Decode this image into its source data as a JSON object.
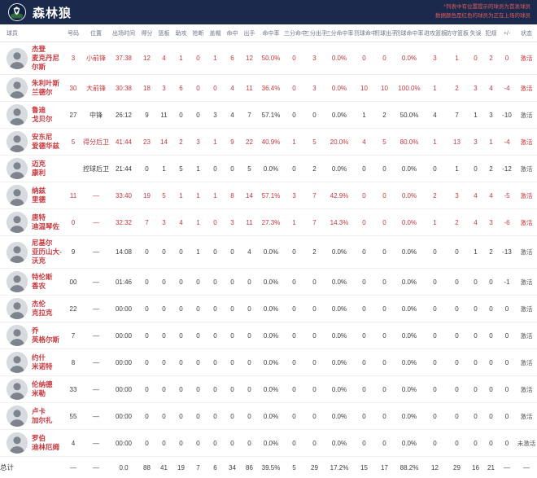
{
  "team": {
    "name": "森林狼"
  },
  "note": {
    "line1": "*列表中有位置提示的球员为首发球员",
    "line2": "数据颜色是红色的球员为正在上场的球员"
  },
  "colors": {
    "header_navy": "#1b2a4c",
    "active_red": "#c8373e",
    "note_red": "#e05a5a",
    "stat_gray": "#3b3b3b"
  },
  "columns": [
    "球员",
    "号码",
    "位置",
    "出场时间",
    "得分",
    "篮板",
    "助攻",
    "抢断",
    "盖帽",
    "命中",
    "出手",
    "命中率",
    "三分命中",
    "三分出手",
    "三分命中率",
    "罚球命中",
    "罚球出手",
    "罚球命中率",
    "进攻篮板",
    "防守篮板",
    "失误",
    "犯规",
    "+/-",
    "状态"
  ],
  "players": [
    {
      "first": "杰登",
      "last": "麦克丹尼尔斯",
      "on_court": true,
      "cells": [
        "3",
        "小前锋",
        "37:38",
        "12",
        "4",
        "1",
        "0",
        "1",
        "6",
        "12",
        "50.0%",
        "0",
        "3",
        "0.0%",
        "0",
        "0",
        "0.0%",
        "3",
        "1",
        "0",
        "2",
        "0",
        "激活"
      ]
    },
    {
      "first": "朱利叶斯",
      "last": "兰德尔",
      "on_court": true,
      "cells": [
        "30",
        "大前锋",
        "30:38",
        "18",
        "3",
        "6",
        "0",
        "0",
        "4",
        "11",
        "36.4%",
        "0",
        "3",
        "0.0%",
        "10",
        "10",
        "100.0%",
        "1",
        "2",
        "3",
        "4",
        "-4",
        "激活"
      ]
    },
    {
      "first": "鲁迪",
      "last": "戈贝尔",
      "on_court": false,
      "cells": [
        "27",
        "中锋",
        "26:12",
        "9",
        "11",
        "0",
        "0",
        "3",
        "4",
        "7",
        "57.1%",
        "0",
        "0",
        "0.0%",
        "1",
        "2",
        "50.0%",
        "4",
        "7",
        "1",
        "3",
        "-10",
        "激活"
      ]
    },
    {
      "first": "安东尼",
      "last": "爱德华兹",
      "on_court": true,
      "cells": [
        "5",
        "得分后卫",
        "41:44",
        "23",
        "14",
        "2",
        "3",
        "1",
        "9",
        "22",
        "40.9%",
        "1",
        "5",
        "20.0%",
        "4",
        "5",
        "80.0%",
        "1",
        "13",
        "3",
        "1",
        "-4",
        "激活"
      ]
    },
    {
      "first": "迈克",
      "last": "康利",
      "on_court": false,
      "cells": [
        "",
        "控球后卫",
        "21:44",
        "0",
        "1",
        "5",
        "1",
        "0",
        "0",
        "5",
        "0.0%",
        "0",
        "2",
        "0.0%",
        "0",
        "0",
        "0.0%",
        "0",
        "1",
        "0",
        "2",
        "-12",
        "激活"
      ]
    },
    {
      "first": "纳兹",
      "last": "里德",
      "on_court": true,
      "cells": [
        "11",
        "—",
        "33:40",
        "19",
        "5",
        "1",
        "1",
        "1",
        "8",
        "14",
        "57.1%",
        "3",
        "7",
        "42.9%",
        "0",
        "0",
        "0.0%",
        "2",
        "3",
        "4",
        "4",
        "-5",
        "激活"
      ]
    },
    {
      "first": "唐特",
      "last": "迪温琴佐",
      "on_court": true,
      "cells": [
        "0",
        "—",
        "32:32",
        "7",
        "3",
        "4",
        "1",
        "0",
        "3",
        "11",
        "27.3%",
        "1",
        "7",
        "14.3%",
        "0",
        "0",
        "0.0%",
        "1",
        "2",
        "4",
        "3",
        "-6",
        "激活"
      ]
    },
    {
      "first": "尼基尔",
      "last": "亚历山大-沃克",
      "on_court": false,
      "cells": [
        "9",
        "—",
        "14:08",
        "0",
        "0",
        "0",
        "1",
        "0",
        "0",
        "4",
        "0.0%",
        "0",
        "2",
        "0.0%",
        "0",
        "0",
        "0.0%",
        "0",
        "0",
        "1",
        "2",
        "-13",
        "激活"
      ]
    },
    {
      "first": "特伦斯",
      "last": "香农",
      "on_court": false,
      "cells": [
        "00",
        "—",
        "01:46",
        "0",
        "0",
        "0",
        "0",
        "0",
        "0",
        "0",
        "0.0%",
        "0",
        "0",
        "0.0%",
        "0",
        "0",
        "0.0%",
        "0",
        "0",
        "0",
        "0",
        "-1",
        "激活"
      ]
    },
    {
      "first": "杰伦",
      "last": "克拉克",
      "on_court": false,
      "cells": [
        "22",
        "—",
        "00:00",
        "0",
        "0",
        "0",
        "0",
        "0",
        "0",
        "0",
        "0.0%",
        "0",
        "0",
        "0.0%",
        "0",
        "0",
        "0.0%",
        "0",
        "0",
        "0",
        "0",
        "0",
        "激活"
      ]
    },
    {
      "first": "乔",
      "last": "英格尔斯",
      "on_court": false,
      "cells": [
        "7",
        "—",
        "00:00",
        "0",
        "0",
        "0",
        "0",
        "0",
        "0",
        "0",
        "0.0%",
        "0",
        "0",
        "0.0%",
        "0",
        "0",
        "0.0%",
        "0",
        "0",
        "0",
        "0",
        "0",
        "激活"
      ]
    },
    {
      "first": "约什",
      "last": "米诺特",
      "on_court": false,
      "cells": [
        "8",
        "—",
        "00:00",
        "0",
        "0",
        "0",
        "0",
        "0",
        "0",
        "0",
        "0.0%",
        "0",
        "0",
        "0.0%",
        "0",
        "0",
        "0.0%",
        "0",
        "0",
        "0",
        "0",
        "0",
        "激活"
      ]
    },
    {
      "first": "伦纳德",
      "last": "米勒",
      "on_court": false,
      "cells": [
        "33",
        "—",
        "00:00",
        "0",
        "0",
        "0",
        "0",
        "0",
        "0",
        "0",
        "0.0%",
        "0",
        "0",
        "0.0%",
        "0",
        "0",
        "0.0%",
        "0",
        "0",
        "0",
        "0",
        "0",
        "激活"
      ]
    },
    {
      "first": "卢卡",
      "last": "加尔扎",
      "on_court": false,
      "cells": [
        "55",
        "—",
        "00:00",
        "0",
        "0",
        "0",
        "0",
        "0",
        "0",
        "0",
        "0.0%",
        "0",
        "0",
        "0.0%",
        "0",
        "0",
        "0.0%",
        "0",
        "0",
        "0",
        "0",
        "0",
        "激活"
      ]
    },
    {
      "first": "罗伯",
      "last": "迪林厄姆",
      "on_court": false,
      "cells": [
        "4",
        "—",
        "00:00",
        "0",
        "0",
        "0",
        "0",
        "0",
        "0",
        "0",
        "0.0%",
        "0",
        "0",
        "0.0%",
        "0",
        "0",
        "0.0%",
        "0",
        "0",
        "0",
        "0",
        "0",
        "未激活"
      ]
    }
  ],
  "totals": {
    "label": "总计",
    "cells": [
      "—",
      "—",
      "0.0",
      "88",
      "41",
      "19",
      "7",
      "6",
      "34",
      "86",
      "39.5%",
      "5",
      "29",
      "17.2%",
      "15",
      "17",
      "88.2%",
      "12",
      "29",
      "16",
      "21",
      "—",
      "—"
    ]
  }
}
